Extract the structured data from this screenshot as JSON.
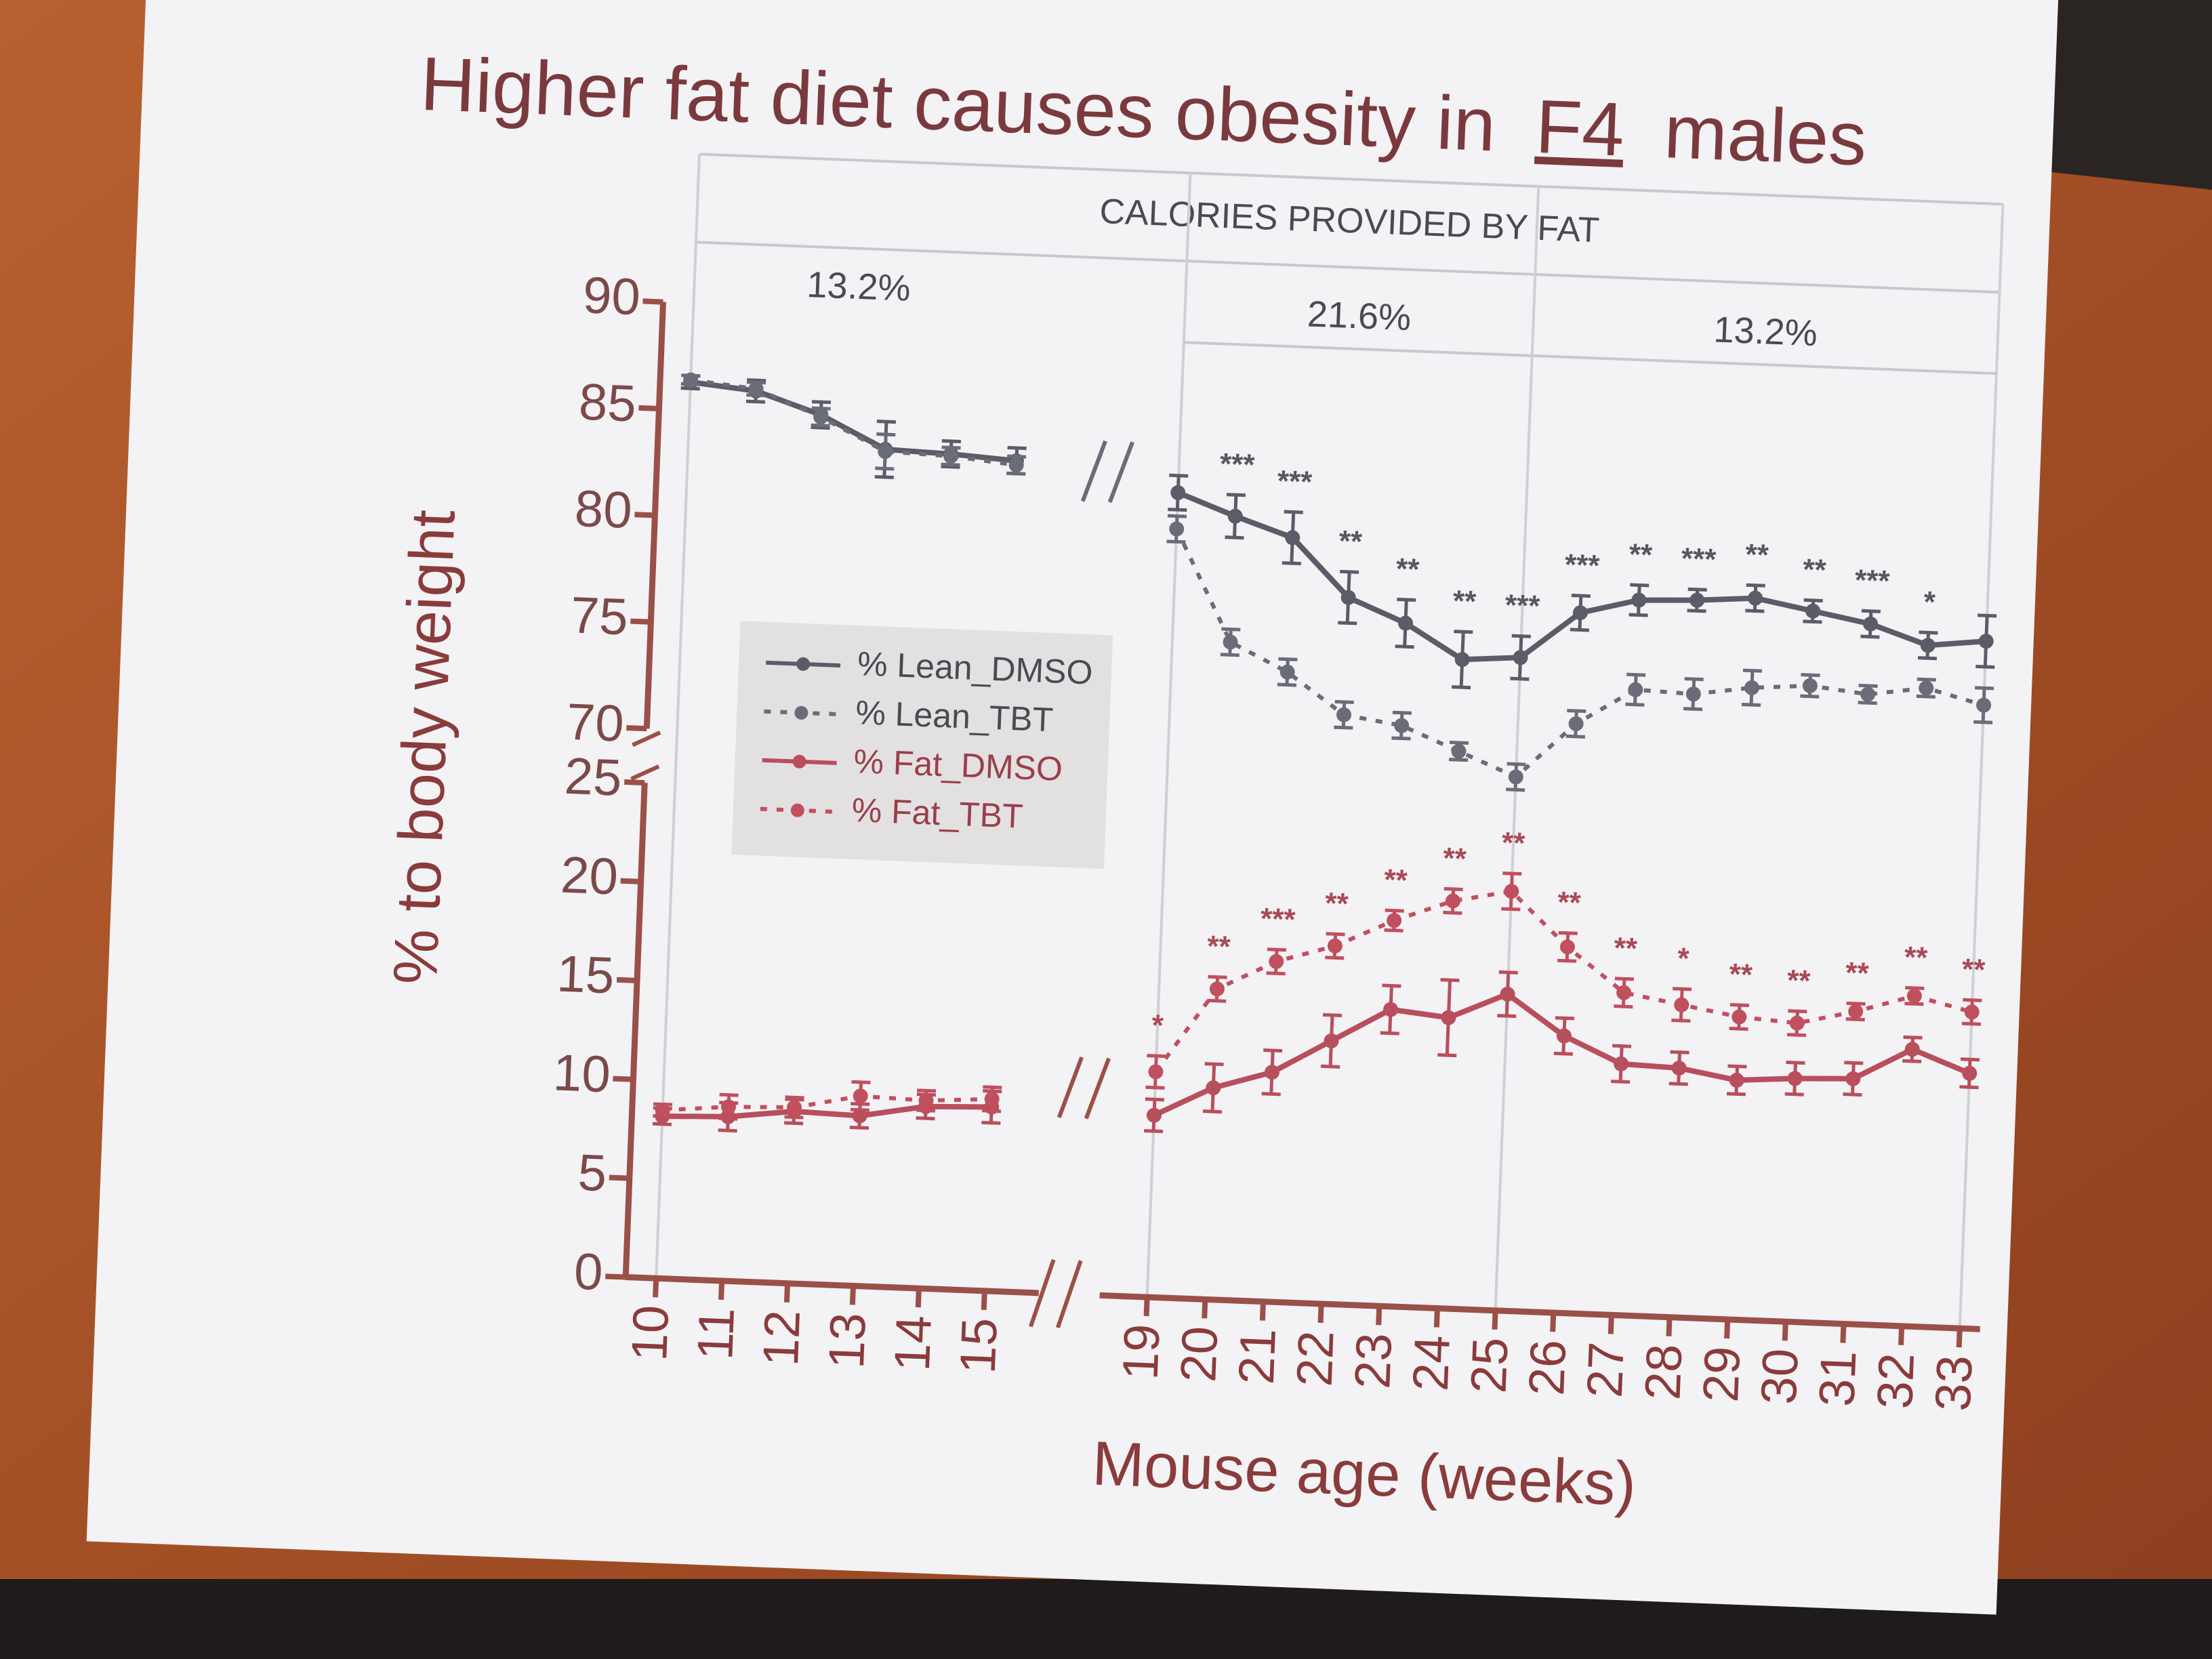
{
  "chart_data": {
    "type": "line",
    "title_parts": [
      "Higher fat diet causes obesity in",
      "F4",
      "males"
    ],
    "header": "CALORIES PROVIDED BY FAT",
    "periods": [
      {
        "label": "13.2%",
        "start": 10,
        "end": 15
      },
      {
        "label": "21.6%",
        "start": 19,
        "end": 25
      },
      {
        "label": "13.2%",
        "start": 25,
        "end": 33
      }
    ],
    "y_label": "% to body weight",
    "x_label": "Mouse age (weeks)",
    "x": [
      10,
      11,
      12,
      13,
      14,
      15,
      19,
      20,
      21,
      22,
      23,
      24,
      25,
      26,
      27,
      28,
      29,
      30,
      31,
      32,
      33
    ],
    "xlim": [
      10,
      33
    ],
    "xticks": [
      10,
      11,
      12,
      13,
      14,
      15,
      19,
      20,
      21,
      22,
      23,
      24,
      25,
      26,
      27,
      28,
      29,
      30,
      31,
      32,
      33
    ],
    "ylim": [
      70,
      90
    ],
    "yticks": [
      70,
      75,
      80,
      85,
      90
    ],
    "y2lim": [
      0,
      25
    ],
    "y2ticks": [
      0,
      5,
      10,
      15,
      20,
      25
    ],
    "legend": "upper left",
    "series": [
      {
        "name": "% Lean_DMSO",
        "color": "#5a5d68",
        "line_style": "solid",
        "axis": "y",
        "values": [
          86.3,
          86.0,
          85.0,
          83.5,
          83.4,
          83.2,
          82.0,
          81.0,
          80.1,
          77.4,
          76.3,
          74.7,
          74.9,
          77.1,
          77.8,
          77.9,
          78.1,
          77.6,
          77.1,
          76.2,
          76.5
        ],
        "errors": [
          0.3,
          0.5,
          0.6,
          1.3,
          0.6,
          0.6,
          0.8,
          1.0,
          1.2,
          1.2,
          1.1,
          1.3,
          1.0,
          0.8,
          0.7,
          0.5,
          0.6,
          0.5,
          0.6,
          0.6,
          1.2
        ]
      },
      {
        "name": "% Lean_TBT",
        "color": "#6a6d78",
        "line_style": "dotted",
        "axis": "y",
        "values": [
          86.4,
          86.1,
          84.9,
          83.4,
          83.3,
          83.0,
          80.3,
          75.1,
          73.8,
          71.9,
          71.5,
          70.4,
          69.3,
          71.9,
          73.6,
          73.5,
          73.9,
          74.1,
          73.8,
          74.2,
          73.5
        ],
        "errors": [
          0.2,
          0.3,
          0.4,
          0.8,
          0.4,
          0.4,
          0.6,
          0.6,
          0.6,
          0.6,
          0.6,
          0.4,
          0.6,
          0.6,
          0.7,
          0.7,
          0.8,
          0.5,
          0.4,
          0.4,
          0.8
        ]
      },
      {
        "name": "% Fat_DMSO",
        "color": "#b84f5c",
        "line_style": "solid",
        "axis": "y2",
        "values": [
          8.2,
          8.3,
          8.7,
          8.6,
          9.2,
          9.3,
          9.2,
          10.7,
          11.6,
          13.3,
          15.0,
          14.7,
          16.0,
          14.0,
          12.7,
          12.6,
          12.1,
          12.3,
          12.4,
          14.0,
          12.9
        ],
        "errors": [
          0.4,
          0.7,
          0.6,
          0.6,
          0.6,
          0.8,
          0.8,
          1.2,
          1.1,
          1.3,
          1.2,
          1.9,
          1.1,
          0.9,
          0.9,
          0.8,
          0.7,
          0.8,
          0.8,
          0.6,
          0.7
        ]
      },
      {
        "name": "% Fat_TBT",
        "color": "#c0505e",
        "line_style": "dotted",
        "axis": "y2",
        "values": [
          8.5,
          8.8,
          8.9,
          9.6,
          9.5,
          9.7,
          11.4,
          15.7,
          17.2,
          18.1,
          19.5,
          20.6,
          21.2,
          18.5,
          16.3,
          15.8,
          15.3,
          15.1,
          15.8,
          16.7,
          16.0
        ],
        "errors": [
          0.3,
          0.6,
          0.5,
          0.7,
          0.5,
          0.6,
          0.8,
          0.6,
          0.6,
          0.6,
          0.5,
          0.6,
          0.9,
          0.7,
          0.7,
          0.8,
          0.6,
          0.6,
          0.4,
          0.4,
          0.6
        ]
      }
    ],
    "significance": {
      "y": [
        null,
        null,
        null,
        null,
        null,
        null,
        null,
        "***",
        "***",
        "**",
        "**",
        "**",
        "***",
        "***",
        "**",
        "***",
        "**",
        "**",
        "***",
        "*",
        null
      ],
      "y2": [
        null,
        null,
        null,
        null,
        null,
        null,
        "*",
        "**",
        "***",
        "**",
        "**",
        "**",
        "**",
        "**",
        "**",
        "*",
        "**",
        "**",
        "**",
        "**",
        "**"
      ]
    }
  }
}
